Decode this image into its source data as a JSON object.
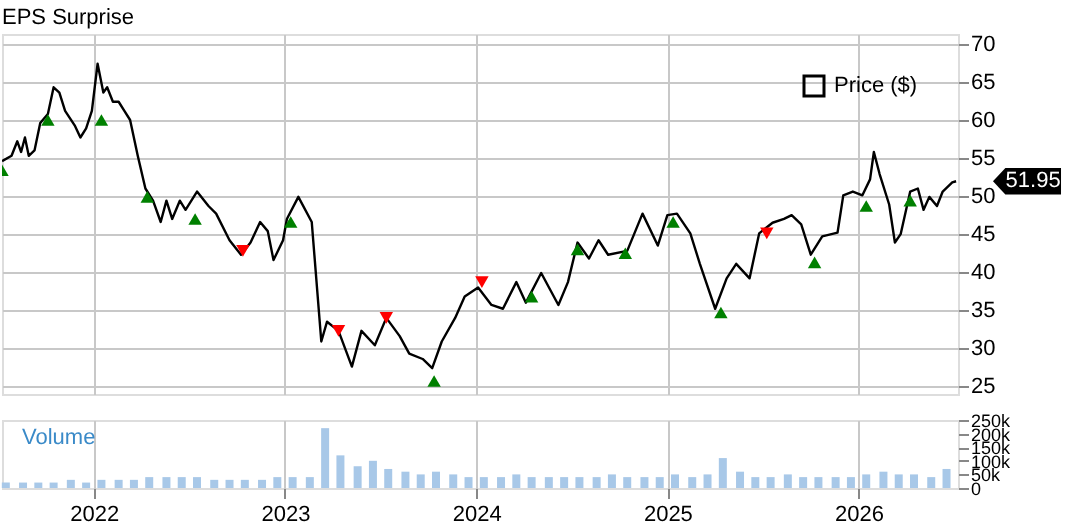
{
  "chart_data": [
    {
      "type": "line",
      "title": "EPS Surprise",
      "xlim": [
        2021.52,
        2026.52
      ],
      "xticks": [
        2022,
        2023,
        2024,
        2025,
        2026
      ],
      "ylim": [
        24,
        71.3
      ],
      "yticks": [
        25,
        30,
        35,
        40,
        45,
        50,
        55,
        60,
        65,
        70
      ],
      "grid": true,
      "legend": "top right",
      "tick_labels": "y",
      "annotations": [
        {
          "text": "51.95",
          "x": 2026.51,
          "y": 51.95
        }
      ],
      "series": [
        {
          "name": "Price ($)",
          "color": "#000000",
          "type": "line",
          "marker": "none",
          "x": [
            2021.52,
            2021.57,
            2021.6,
            2021.62,
            2021.64,
            2021.66,
            2021.69,
            2021.72,
            2021.76,
            2021.79,
            2021.82,
            2021.85,
            2021.9,
            2021.93,
            2021.96,
            2021.99,
            2022.02,
            2022.05,
            2022.07,
            2022.1,
            2022.13,
            2022.16,
            2022.19,
            2022.23,
            2022.27,
            2022.31,
            2022.35,
            2022.38,
            2022.41,
            2022.45,
            2022.48,
            2022.54,
            2022.6,
            2022.64,
            2022.71,
            2022.77,
            2022.82,
            2022.87,
            2022.91,
            2022.94,
            2022.99,
            2023.01,
            2023.07,
            2023.14,
            2023.19,
            2023.22,
            2023.28,
            2023.35,
            2023.4,
            2023.47,
            2023.53,
            2023.6,
            2023.65,
            2023.72,
            2023.77,
            2023.82,
            2023.89,
            2023.94,
            2024.01,
            2024.08,
            2024.14,
            2024.21,
            2024.26,
            2024.34,
            2024.43,
            2024.48,
            2024.53,
            2024.59,
            2024.64,
            2024.69,
            2024.79,
            2024.87,
            2024.95,
            2025.0,
            2025.05,
            2025.12,
            2025.17,
            2025.25,
            2025.31,
            2025.36,
            2025.43,
            2025.48,
            2025.55,
            2025.61,
            2025.65,
            2025.7,
            2025.75,
            2025.81,
            2025.89,
            2025.92,
            2025.97,
            2026.02,
            2026.06,
            2026.08,
            2026.11,
            2026.16,
            2026.19,
            2026.22,
            2026.27,
            2026.31,
            2026.34,
            2026.37,
            2026.41,
            2026.44,
            2026.49,
            2026.51
          ],
          "values": [
            54.6,
            55.3,
            57.2,
            55.8,
            57.7,
            55.3,
            56,
            59.6,
            60.8,
            64.3,
            63.6,
            61.2,
            59.3,
            57.7,
            58.9,
            61.2,
            67.4,
            63.6,
            64.3,
            62.4,
            62.4,
            61.2,
            60,
            55.3,
            51,
            49.4,
            46.6,
            49.4,
            47,
            49.4,
            48.2,
            50.6,
            48.7,
            47.7,
            44.2,
            42.3,
            43.9,
            46.6,
            45.4,
            41.6,
            44.2,
            47,
            49.9,
            46.6,
            30.9,
            33.5,
            32.3,
            27.6,
            32.3,
            30.4,
            34,
            31.6,
            29.3,
            28.6,
            27.4,
            30.9,
            34,
            36.8,
            38,
            35.7,
            35.2,
            38.7,
            36,
            39.9,
            35.7,
            38.7,
            43.9,
            41.8,
            44.2,
            42.3,
            42.8,
            47.7,
            43.5,
            47.5,
            47.7,
            45.1,
            41.1,
            35.2,
            39.2,
            41.1,
            39.2,
            45.1,
            46.5,
            47,
            47.5,
            46.3,
            42.3,
            44.7,
            45.2,
            50.1,
            50.6,
            50.1,
            52.2,
            55.8,
            52.9,
            48.9,
            43.9,
            45,
            50.6,
            51,
            48.2,
            49.9,
            48.7,
            50.6,
            51.8,
            51.95
          ]
        },
        {
          "color": "#008000",
          "type": "scatter",
          "marker": "triangle",
          "x": [
            2021.52,
            2021.76,
            2022.04,
            2022.28,
            2022.53,
            2023.03,
            2023.78,
            2024.29,
            2024.53,
            2024.78,
            2025.03,
            2025.28,
            2025.77,
            2026.04,
            2026.27
          ],
          "values": [
            53.4,
            60,
            60,
            49.9,
            47,
            46.6,
            25.7,
            36.8,
            43,
            42.5,
            46.6,
            34.7,
            41.3,
            48.7,
            49.4
          ]
        },
        {
          "color": "#ff0000",
          "type": "scatter",
          "marker": "triangle-down",
          "x": [
            2022.78,
            2023.28,
            2023.53,
            2024.03,
            2025.52
          ],
          "values": [
            42.8,
            32.3,
            34,
            38.7,
            45.1
          ]
        }
      ]
    },
    {
      "type": "bar",
      "title": "Volume",
      "xlim": [
        2021.52,
        2026.52
      ],
      "xticks": [
        2022,
        2023,
        2024,
        2025,
        2026
      ],
      "ylim": [
        0,
        250000
      ],
      "yticks": [
        0,
        {
          "value": 50000,
          "label": "50k"
        },
        {
          "value": 100000,
          "label": "100k"
        },
        {
          "value": 150000,
          "label": "150k"
        },
        {
          "value": 200000,
          "label": "200k"
        },
        {
          "value": 250000,
          "label": "250k"
        }
      ],
      "grid": "x",
      "series": [
        {
          "color": "#a8c8e8",
          "x": [
            2021.54,
            2021.63,
            2021.71,
            2021.79,
            2021.88,
            2021.96,
            2022.04,
            2022.13,
            2022.21,
            2022.29,
            2022.38,
            2022.46,
            2022.54,
            2022.63,
            2022.71,
            2022.79,
            2022.88,
            2022.96,
            2023.04,
            2023.13,
            2023.21,
            2023.29,
            2023.38,
            2023.46,
            2023.54,
            2023.63,
            2023.71,
            2023.79,
            2023.88,
            2023.96,
            2024.04,
            2024.13,
            2024.21,
            2024.29,
            2024.38,
            2024.46,
            2024.54,
            2024.63,
            2024.71,
            2024.79,
            2024.88,
            2024.96,
            2025.04,
            2025.13,
            2025.21,
            2025.29,
            2025.38,
            2025.46,
            2025.54,
            2025.63,
            2025.71,
            2025.79,
            2025.88,
            2025.96,
            2026.04,
            2026.13,
            2026.21,
            2026.29,
            2026.38,
            2026.46
          ],
          "values": [
            20000,
            20000,
            20000,
            20000,
            30000,
            20000,
            30000,
            30000,
            30000,
            40000,
            40000,
            40000,
            40000,
            30000,
            30000,
            30000,
            30000,
            40000,
            40000,
            40000,
            220000,
            120000,
            80000,
            100000,
            70000,
            60000,
            50000,
            60000,
            50000,
            40000,
            40000,
            40000,
            50000,
            40000,
            40000,
            40000,
            40000,
            40000,
            50000,
            40000,
            40000,
            40000,
            50000,
            40000,
            50000,
            110000,
            60000,
            40000,
            40000,
            50000,
            40000,
            40000,
            40000,
            40000,
            50000,
            60000,
            50000,
            50000,
            40000,
            70000
          ]
        }
      ]
    }
  ]
}
